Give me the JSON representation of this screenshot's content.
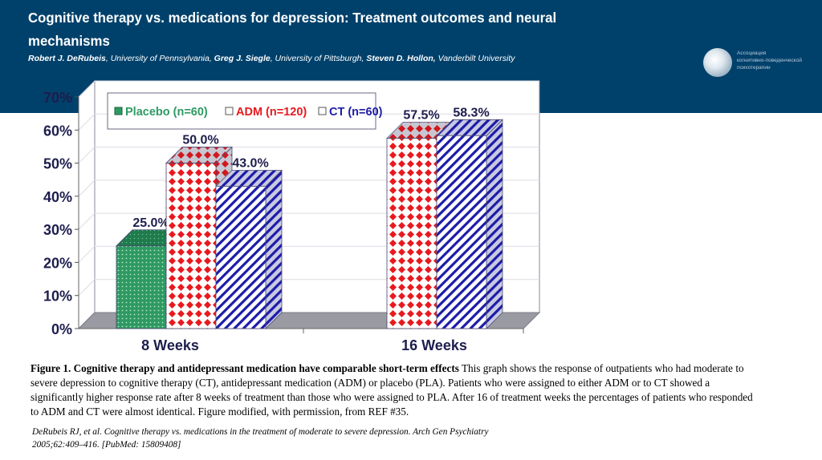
{
  "header": {
    "title": "Cognitive therapy vs. medications for depression: Treatment  outcomes and neural mechanisms",
    "authors": [
      {
        "name": "Robert J. DeRubeis",
        "affiliation": ", University of Pennsylvania, "
      },
      {
        "name": "Greg J. Siegle",
        "affiliation": ", University of Pittsburgh, "
      },
      {
        "name": "Steven D. Hollon,",
        "affiliation": " Vanderbilt University"
      }
    ],
    "logo": {
      "icon": "globe-icon",
      "lines": [
        "Ассоциация",
        "когнитивно-поведенческой",
        "психотерапии"
      ]
    }
  },
  "chart_data": {
    "type": "bar",
    "style": "3d-clustered",
    "categories": [
      "8 Weeks",
      "16 Weeks"
    ],
    "series": [
      {
        "name": "Placebo (n=60)",
        "values": [
          25.0,
          null
        ],
        "labels": [
          "25.0%",
          null
        ],
        "color": "#2e9a63",
        "pattern": "dots"
      },
      {
        "name": "ADM (n=120)",
        "values": [
          50.0,
          57.5
        ],
        "labels": [
          "50.0%",
          "57.5%"
        ],
        "color": "#e8191e",
        "pattern": "diamond-check"
      },
      {
        "name": "CT (n=60)",
        "values": [
          43.0,
          58.3
        ],
        "labels": [
          "43.0%",
          "58.3%"
        ],
        "color": "#1c1ca8",
        "pattern": "diagonal-stripes"
      }
    ],
    "title": "",
    "xlabel": "",
    "ylabel": "",
    "ylim": [
      0,
      70
    ],
    "yticks": [
      "0%",
      "10%",
      "20%",
      "30%",
      "40%",
      "50%",
      "60%",
      "70%"
    ],
    "grid": true,
    "legend": "top, inside plot area"
  },
  "caption": {
    "bold": "Figure 1. Cognitive therapy and antidepressant medication have comparable short-term effects",
    "text": " This graph shows the response of outpatients who had moderate to severe depression to  cognitive therapy (CT), antidepressant medication (ADM) or placebo (PLA). Patients who  were assigned to either ADM or to CT showed a significantly higher response rate after 8 weeks  of treatment than those who were assigned to PLA. After 16 of treatment weeks the percentages  of patients who responded to ADM and CT were almost identical. Figure modified, with  permission, from REF #35."
  },
  "reference": {
    "line1": "DeRubeis RJ, et al. Cognitive therapy vs. medications in the treatment of moderate to severe  depression. Arch Gen Psychiatry",
    "line2": "2005;62:409–416. [PubMed: 15809408]"
  }
}
